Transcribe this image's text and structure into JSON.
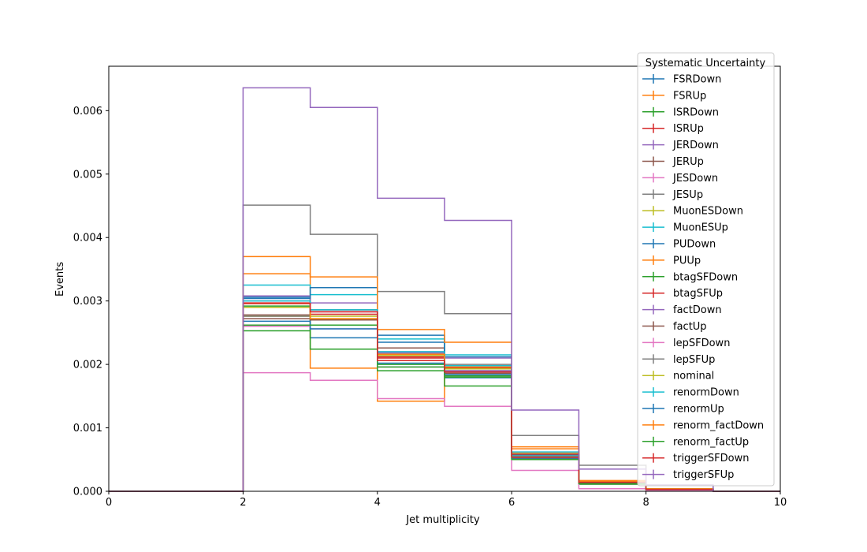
{
  "chart_data": {
    "type": "step-histogram",
    "xlabel": "Jet multiplicity",
    "ylabel": "Events",
    "xlim": [
      0,
      10
    ],
    "ylim": [
      0,
      0.0067
    ],
    "x_ticks": [
      0,
      2,
      4,
      6,
      8,
      10
    ],
    "x_tick_labels": [
      "0",
      "2",
      "4",
      "6",
      "8",
      "10"
    ],
    "y_ticks": [
      0,
      0.001,
      0.002,
      0.003,
      0.004,
      0.005,
      0.006
    ],
    "y_tick_labels": [
      "0.000",
      "0.001",
      "0.002",
      "0.003",
      "0.004",
      "0.005",
      "0.006"
    ],
    "grid": false,
    "legend": {
      "title": "Systematic Uncertainty",
      "placement": "upper right"
    },
    "bin_edges": [
      0,
      1,
      2,
      3,
      4,
      5,
      6,
      7,
      8,
      9,
      10
    ],
    "series": [
      {
        "name": "FSRDown",
        "color": "#1f77b4",
        "values": [
          0,
          0,
          0.00306,
          0.00242,
          0.00235,
          0.00179,
          0.0005,
          0.00013,
          3e-05,
          0
        ]
      },
      {
        "name": "FSRUp",
        "color": "#ff7f0e",
        "values": [
          0,
          0,
          0.0037,
          0.00194,
          0.00142,
          0.0019,
          0.00067,
          0.00016,
          3e-05,
          0
        ]
      },
      {
        "name": "ISRDown",
        "color": "#2ca02c",
        "values": [
          0,
          0,
          0.00292,
          0.00224,
          0.0019,
          0.00166,
          0.00054,
          0.00011,
          3e-05,
          0
        ]
      },
      {
        "name": "ISRUp",
        "color": "#d62728",
        "values": [
          0,
          0,
          0.00297,
          0.00279,
          0.0021,
          0.00194,
          0.00058,
          0.00015,
          4e-05,
          0
        ]
      },
      {
        "name": "JERDown",
        "color": "#9467bd",
        "values": [
          0,
          0,
          0.00308,
          0.00297,
          0.0022,
          0.0021,
          0.00058,
          0.00014,
          3e-05,
          0
        ]
      },
      {
        "name": "JERUp",
        "color": "#8c564b",
        "values": [
          0,
          0,
          0.00278,
          0.00286,
          0.00226,
          0.0019,
          0.00055,
          0.00014,
          3e-05,
          0
        ]
      },
      {
        "name": "JESDown",
        "color": "#e377c2",
        "values": [
          0,
          0,
          0.00187,
          0.00175,
          0.00146,
          0.00134,
          0.00033,
          4e-05,
          1e-05,
          0
        ]
      },
      {
        "name": "JESUp",
        "color": "#7f7f7f",
        "values": [
          0,
          0,
          0.00451,
          0.00405,
          0.00315,
          0.0028,
          0.00088,
          0.00041,
          0.0001,
          0
        ]
      },
      {
        "name": "MuonESDown",
        "color": "#bcbd22",
        "values": [
          0,
          0,
          0.00276,
          0.00272,
          0.00218,
          0.00195,
          0.00056,
          0.00014,
          3e-05,
          0
        ]
      },
      {
        "name": "MuonESUp",
        "color": "#17becf",
        "values": [
          0,
          0,
          0.00325,
          0.0031,
          0.0024,
          0.00215,
          0.00062,
          0.00015,
          4e-05,
          0
        ]
      },
      {
        "name": "PUDown",
        "color": "#1f77b4",
        "values": [
          0,
          0,
          0.00304,
          0.00321,
          0.00246,
          0.00212,
          0.00058,
          0.00015,
          4e-05,
          0
        ]
      },
      {
        "name": "PUUp",
        "color": "#ff7f0e",
        "values": [
          0,
          0,
          0.00343,
          0.00338,
          0.00255,
          0.00235,
          0.0007,
          0.00017,
          4e-05,
          0
        ]
      },
      {
        "name": "btagSFDown",
        "color": "#2ca02c",
        "values": [
          0,
          0,
          0.00253,
          0.00262,
          0.002,
          0.00182,
          0.00052,
          0.00013,
          3e-05,
          0
        ]
      },
      {
        "name": "btagSFUp",
        "color": "#d62728",
        "values": [
          0,
          0,
          0.00296,
          0.00283,
          0.00212,
          0.00195,
          0.00057,
          0.00015,
          4e-05,
          0
        ]
      },
      {
        "name": "factDown",
        "color": "#9467bd",
        "values": [
          0,
          0,
          0.003,
          0.00283,
          0.00218,
          0.0019,
          0.00054,
          0.00014,
          3e-05,
          0
        ]
      },
      {
        "name": "factUp",
        "color": "#8c564b",
        "values": [
          0,
          0,
          0.00272,
          0.0027,
          0.00206,
          0.00186,
          0.00052,
          0.00013,
          3e-05,
          0
        ]
      },
      {
        "name": "lepSFDown",
        "color": "#e377c2",
        "values": [
          0,
          0,
          0.0026,
          0.00256,
          0.00196,
          0.0018,
          0.0005,
          0.00012,
          3e-05,
          0
        ]
      },
      {
        "name": "lepSFUp",
        "color": "#7f7f7f",
        "values": [
          0,
          0,
          0.00276,
          0.00286,
          0.00216,
          0.002,
          0.00056,
          0.00014,
          4e-05,
          0
        ]
      },
      {
        "name": "nominal",
        "color": "#bcbd22",
        "values": [
          0,
          0,
          0.0029,
          0.00276,
          0.00214,
          0.00193,
          0.00055,
          0.00014,
          3e-05,
          0
        ]
      },
      {
        "name": "renormDown",
        "color": "#17becf",
        "values": [
          0,
          0,
          0.003,
          0.00286,
          0.0022,
          0.00198,
          0.00056,
          0.00014,
          3e-05,
          0
        ]
      },
      {
        "name": "renormUp",
        "color": "#1f77b4",
        "values": [
          0,
          0,
          0.00268,
          0.00256,
          0.00202,
          0.00184,
          0.00051,
          0.00013,
          3e-05,
          0
        ]
      },
      {
        "name": "renorm_factDown",
        "color": "#ff7f0e",
        "values": [
          0,
          0,
          0.00296,
          0.00272,
          0.00216,
          0.00196,
          0.0006,
          0.00015,
          4e-05,
          0
        ]
      },
      {
        "name": "renorm_factUp",
        "color": "#2ca02c",
        "values": [
          0,
          0,
          0.00262,
          0.00262,
          0.00196,
          0.0018,
          0.0005,
          0.00012,
          3e-05,
          0
        ]
      },
      {
        "name": "triggerSFDown",
        "color": "#d62728",
        "values": [
          0,
          0,
          0.00296,
          0.00283,
          0.00206,
          0.00188,
          0.00054,
          0.00014,
          3e-05,
          0
        ]
      },
      {
        "name": "triggerSFUp",
        "color": "#9467bd",
        "values": [
          0,
          0,
          0.00636,
          0.00605,
          0.00462,
          0.00427,
          0.00128,
          0.00035,
          0.0001,
          0
        ]
      }
    ]
  }
}
